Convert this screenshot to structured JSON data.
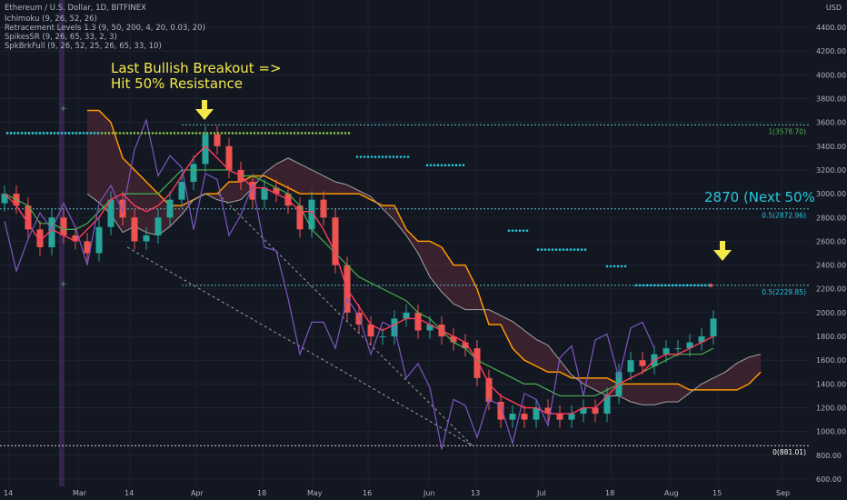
{
  "header": {
    "symbol_line": "Ethereum / U.S. Dollar, 1D, BITFINEX",
    "indicators": [
      "Ichimoku (9, 26, 52, 26)",
      "Retracement Levels 1.3 (9, 50, 200, 4, 20, 0.03, 20)",
      "SpikesSR (9, 26, 65, 33, 2, 3)",
      "SpkBrkFull (9, 26, 52, 25, 26, 65, 33, 10)"
    ]
  },
  "currency": "USD",
  "annotations": {
    "breakout_line1": "Last Bullish Breakout =>",
    "breakout_line2": "Hit 50% Resistance",
    "next_target": "2870 (Next 50%"
  },
  "level_labels": [
    {
      "label": "1(3578.70)",
      "price": 3578.7
    },
    {
      "label": "0.5(2872.96)",
      "price": 2872.96
    },
    {
      "label": "0.5(2229.85)",
      "price": 2229.85
    },
    {
      "label": "0(881.01)",
      "price": 881.01
    }
  ],
  "colors": {
    "background": "#131722",
    "bull": "#26a69a",
    "bear": "#ef5350",
    "tenkan": "#ff3b5c",
    "kijun": "#4caf50",
    "lagging": "#7e57c2",
    "span_b": "#ff9800",
    "span_a": "#a5a5a5",
    "annotation": "#f5e94a",
    "level": "#26c6da"
  },
  "chart_data": {
    "type": "candlestick",
    "title": "Ethereum / U.S. Dollar, 1D, BITFINEX",
    "y_axis_ticks": [
      600,
      800,
      1000,
      1200,
      1400,
      1600,
      1800,
      2000,
      2200,
      2400,
      2600,
      2800,
      3000,
      3200,
      3400,
      3600,
      3800,
      4000,
      4200,
      4400
    ],
    "y_tick_labels": [
      "600.00",
      "800.00",
      "1000.00",
      "1200.00",
      "1400.00",
      "1600.00",
      "1800.00",
      "2000.00",
      "2200.00",
      "2400.00",
      "2600.00",
      "2800.00",
      "3000.00",
      "3200.00",
      "3400.00",
      "3600.00",
      "3800.00",
      "4000.00",
      "4200.00",
      "4400.00"
    ],
    "x_tick_labels": [
      "14",
      "Mar",
      "14",
      "Apr",
      "18",
      "May",
      "16",
      "Jun",
      "13",
      "Jul",
      "18",
      "Aug",
      "15",
      "Sep"
    ],
    "ylim": [
      560,
      4520
    ],
    "grid": true,
    "close_series": [
      3000,
      2900,
      2700,
      2550,
      2800,
      2650,
      2600,
      2500,
      2720,
      2950,
      2800,
      2600,
      2650,
      2800,
      2950,
      3100,
      3250,
      3500,
      3400,
      3200,
      3100,
      2950,
      3050,
      3000,
      2900,
      2700,
      2950,
      2800,
      2400,
      2000,
      1900,
      1800,
      1800,
      1950,
      2000,
      1850,
      1900,
      1800,
      1750,
      1700,
      1450,
      1250,
      1100,
      1150,
      1100,
      1200,
      1150,
      1100,
      1150,
      1200,
      1150,
      1300,
      1500,
      1600,
      1550,
      1650,
      1700,
      1700,
      1750,
      1800,
      1950
    ],
    "tenkan": [
      3000,
      2900,
      2750,
      2600,
      2700,
      2650,
      2600,
      2700,
      2800,
      2950,
      3000,
      2900,
      2850,
      2900,
      3000,
      3150,
      3300,
      3400,
      3300,
      3200,
      3150,
      3050,
      3050,
      3000,
      2950,
      2850,
      2850,
      2700,
      2500,
      2200,
      2050,
      1900,
      1850,
      1900,
      1950,
      1950,
      1900,
      1850,
      1800,
      1750,
      1600,
      1400,
      1300,
      1250,
      1200,
      1200,
      1150,
      1150,
      1150,
      1200,
      1200,
      1300,
      1400,
      1450,
      1500,
      1600,
      1650,
      1650,
      1700,
      1750,
      1800
    ],
    "kijun": [
      3000,
      2950,
      2900,
      2750,
      2750,
      2700,
      2700,
      2750,
      2850,
      2950,
      3000,
      3000,
      3000,
      3000,
      3100,
      3200,
      3200,
      3200,
      3200,
      3200,
      3150,
      3150,
      3100,
      3050,
      3000,
      2900,
      2700,
      2600,
      2500,
      2400,
      2300,
      2250,
      2200,
      2150,
      2100,
      2000,
      1950,
      1850,
      1750,
      1700,
      1600,
      1550,
      1500,
      1450,
      1400,
      1400,
      1350,
      1300,
      1300,
      1300,
      1300,
      1350,
      1400,
      1450,
      1500,
      1550,
      1600,
      1650,
      1650,
      1650,
      1700
    ],
    "levels": [
      3578.7,
      2872.96,
      2229.85,
      881.01
    ]
  }
}
